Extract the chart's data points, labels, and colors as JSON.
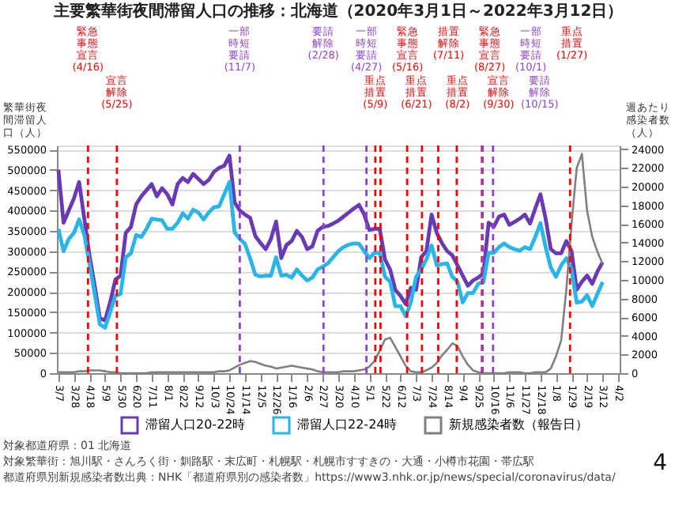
{
  "chart_data": {
    "type": "line",
    "title": "主要繁華街夜間滞留人口の推移：北海道（2020年3月1日～2022年3月12日）",
    "ylabel": "繁華街夜間滞留人口（人）",
    "y2label": "週あたり感染者数（人）",
    "x": [
      "2020-03-07",
      "2020-03-14",
      "2020-03-21",
      "2020-03-28",
      "2020-04-04",
      "2020-04-11",
      "2020-04-18",
      "2020-04-25",
      "2020-05-02",
      "2020-05-09",
      "2020-05-16",
      "2020-05-23",
      "2020-05-30",
      "2020-06-06",
      "2020-06-13",
      "2020-06-20",
      "2020-06-27",
      "2020-07-04",
      "2020-07-11",
      "2020-07-18",
      "2020-07-25",
      "2020-08-01",
      "2020-08-08",
      "2020-08-15",
      "2020-08-22",
      "2020-08-29",
      "2020-09-05",
      "2020-09-12",
      "2020-09-19",
      "2020-09-26",
      "2020-10-03",
      "2020-10-10",
      "2020-10-17",
      "2020-10-24",
      "2020-10-31",
      "2020-11-07",
      "2020-11-14",
      "2020-11-21",
      "2020-11-28",
      "2020-12-05",
      "2020-12-12",
      "2020-12-19",
      "2020-12-26",
      "2021-01-02",
      "2021-01-09",
      "2021-01-16",
      "2021-01-23",
      "2021-01-30",
      "2021-02-06",
      "2021-02-13",
      "2021-02-20",
      "2021-02-27",
      "2021-03-06",
      "2021-03-13",
      "2021-03-20",
      "2021-03-27",
      "2021-04-03",
      "2021-04-10",
      "2021-04-17",
      "2021-04-24",
      "2021-05-01",
      "2021-05-08",
      "2021-05-15",
      "2021-05-22",
      "2021-05-29",
      "2021-06-05",
      "2021-06-12",
      "2021-06-19",
      "2021-06-26",
      "2021-07-03",
      "2021-07-10",
      "2021-07-17",
      "2021-07-24",
      "2021-07-31",
      "2021-08-07",
      "2021-08-14",
      "2021-08-21",
      "2021-08-28",
      "2021-09-04",
      "2021-09-11",
      "2021-09-18",
      "2021-09-25",
      "2021-10-02",
      "2021-10-09",
      "2021-10-16",
      "2021-10-23",
      "2021-10-30",
      "2021-11-06",
      "2021-11-13",
      "2021-11-20",
      "2021-11-27",
      "2021-12-04",
      "2021-12-11",
      "2021-12-18",
      "2021-12-25",
      "2022-01-01",
      "2022-01-08",
      "2022-01-15",
      "2022-01-22",
      "2022-01-29",
      "2022-02-05",
      "2022-02-12",
      "2022-02-19",
      "2022-02-26",
      "2022-03-05",
      "2022-03-12"
    ],
    "series": [
      {
        "name": "滞留人口20-22時",
        "color": "#6a3ab5",
        "values": [
          500000,
          370000,
          400000,
          430000,
          470000,
          380000,
          290000,
          215000,
          135000,
          130000,
          175000,
          230000,
          240000,
          345000,
          360000,
          415000,
          435000,
          450000,
          465000,
          435000,
          455000,
          440000,
          415000,
          465000,
          480000,
          470000,
          490000,
          478000,
          465000,
          475000,
          495000,
          505000,
          510000,
          535000,
          420000,
          400000,
          390000,
          382000,
          337000,
          320000,
          305000,
          330000,
          373000,
          283000,
          315000,
          325000,
          350000,
          335000,
          305000,
          312000,
          350000,
          360000,
          362000,
          368000,
          375000,
          385000,
          395000,
          405000,
          414000,
          390000,
          352000,
          355000,
          355000,
          280000,
          255000,
          205000,
          190000,
          170000,
          210000,
          205000,
          285000,
          300000,
          390000,
          345000,
          320000,
          300000,
          290000,
          265000,
          240000,
          215000,
          228000,
          235000,
          245000,
          370000,
          360000,
          385000,
          390000,
          365000,
          372000,
          380000,
          390000,
          368000,
          405000,
          440000,
          380000,
          305000,
          295000,
          295000,
          325000,
          300000,
          205000,
          225000,
          240000,
          220000,
          250000,
          273000
        ]
      },
      {
        "name": "滞留人口22-24時",
        "color": "#29b5e8",
        "values": [
          355000,
          300000,
          330000,
          345000,
          378000,
          340000,
          270000,
          195000,
          120000,
          112000,
          150000,
          190000,
          195000,
          285000,
          295000,
          340000,
          335000,
          355000,
          380000,
          378000,
          376000,
          355000,
          355000,
          370000,
          393000,
          380000,
          402000,
          395000,
          378000,
          395000,
          408000,
          410000,
          440000,
          470000,
          346000,
          330000,
          318000,
          282000,
          242000,
          238000,
          240000,
          240000,
          285000,
          240000,
          242000,
          235000,
          255000,
          240000,
          228000,
          235000,
          255000,
          262000,
          270000,
          285000,
          300000,
          310000,
          316000,
          319000,
          318000,
          300000,
          283000,
          296000,
          296000,
          237000,
          225000,
          165000,
          165000,
          140000,
          174000,
          237000,
          255000,
          280000,
          314000,
          265000,
          268000,
          270000,
          237000,
          225000,
          174000,
          197000,
          197000,
          220000,
          224000,
          296000,
          296000,
          310000,
          319000,
          310000,
          305000,
          301000,
          310000,
          305000,
          335000,
          369000,
          310000,
          260000,
          237000,
          265000,
          283000,
          255000,
          174000,
          176000,
          192000,
          165000,
          195000,
          224000
        ]
      },
      {
        "name": "新規感染者数（報告日）",
        "color": "#808080",
        "axis": "y2",
        "values": [
          100,
          100,
          100,
          100,
          200,
          200,
          300,
          300,
          300,
          200,
          100,
          100,
          0,
          0,
          0,
          0,
          0,
          0,
          100,
          100,
          100,
          100,
          100,
          100,
          100,
          100,
          100,
          100,
          100,
          100,
          100,
          200,
          200,
          300,
          600,
          900,
          1100,
          1300,
          1200,
          1000,
          800,
          700,
          500,
          600,
          700,
          800,
          700,
          600,
          500,
          400,
          200,
          100,
          100,
          100,
          100,
          200,
          200,
          200,
          300,
          400,
          700,
          1300,
          2400,
          3600,
          3800,
          2800,
          1800,
          800,
          200,
          100,
          100,
          300,
          600,
          1100,
          1900,
          2500,
          3200,
          2900,
          1800,
          900,
          300,
          100,
          0,
          0,
          0,
          0,
          0,
          100,
          100,
          100,
          0,
          0,
          100,
          100,
          100,
          500,
          1800,
          3500,
          9000,
          16000,
          22000,
          23500,
          17400,
          14600,
          13000,
          11700
        ]
      }
    ],
    "xlim": [
      "2020-03-05",
      "2022-04-04"
    ],
    "xticks": [
      {
        "value": "2020-03-07",
        "label": "3/7"
      },
      {
        "value": "2020-03-28",
        "label": "3/28"
      },
      {
        "value": "2020-04-18",
        "label": "4/18"
      },
      {
        "value": "2020-05-09",
        "label": "5/9"
      },
      {
        "value": "2020-05-30",
        "label": "5/30"
      },
      {
        "value": "2020-06-20",
        "label": "6/20"
      },
      {
        "value": "2020-07-11",
        "label": "7/11"
      },
      {
        "value": "2020-08-01",
        "label": "8/1"
      },
      {
        "value": "2020-08-22",
        "label": "8/22"
      },
      {
        "value": "2020-09-12",
        "label": "9/12"
      },
      {
        "value": "2020-10-03",
        "label": "10/3"
      },
      {
        "value": "2020-10-24",
        "label": "10/24"
      },
      {
        "value": "2020-11-14",
        "label": "11/14"
      },
      {
        "value": "2020-12-05",
        "label": "12/5"
      },
      {
        "value": "2020-12-26",
        "label": "12/26"
      },
      {
        "value": "2021-01-16",
        "label": "1/16"
      },
      {
        "value": "2021-02-06",
        "label": "2/6"
      },
      {
        "value": "2021-02-27",
        "label": "2/27"
      },
      {
        "value": "2021-03-20",
        "label": "3/20"
      },
      {
        "value": "2021-04-10",
        "label": "4/10"
      },
      {
        "value": "2021-05-01",
        "label": "5/1"
      },
      {
        "value": "2021-05-22",
        "label": "5/22"
      },
      {
        "value": "2021-06-12",
        "label": "6/12"
      },
      {
        "value": "2021-07-03",
        "label": "7/3"
      },
      {
        "value": "2021-07-24",
        "label": "7/24"
      },
      {
        "value": "2021-08-14",
        "label": "8/14"
      },
      {
        "value": "2021-09-04",
        "label": "9/4"
      },
      {
        "value": "2021-09-25",
        "label": "9/25"
      },
      {
        "value": "2021-10-16",
        "label": "10/16"
      },
      {
        "value": "2021-11-06",
        "label": "11/6"
      },
      {
        "value": "2021-11-27",
        "label": "11/27"
      },
      {
        "value": "2021-12-18",
        "label": "12/18"
      },
      {
        "value": "2022-01-08",
        "label": "1/8"
      },
      {
        "value": "2022-01-29",
        "label": "1/29"
      },
      {
        "value": "2022-02-19",
        "label": "2/19"
      },
      {
        "value": "2022-03-12",
        "label": "3/12"
      },
      {
        "value": "2022-04-02",
        "label": "4/2"
      }
    ],
    "ylim": [
      0,
      560000
    ],
    "yticks": [
      0,
      50000,
      100000,
      150000,
      200000,
      250000,
      300000,
      350000,
      400000,
      450000,
      500000,
      550000
    ],
    "y2lim": [
      0,
      24400
    ],
    "y2ticks": [
      0,
      2000,
      4000,
      6000,
      8000,
      10000,
      12000,
      14000,
      16000,
      18000,
      20000,
      22000,
      24000
    ],
    "ref_lines": [
      {
        "axis": "x",
        "value": "2020-04-16",
        "label": "緊急事態宣言(4/16)",
        "color": "#ff0000",
        "line_style": "dashed"
      },
      {
        "axis": "x",
        "value": "2020-05-25",
        "label": "宣言解除(5/25)",
        "color": "#ff0000",
        "line_style": "dashed"
      },
      {
        "axis": "x",
        "value": "2020-11-07",
        "label": "一部時短要請(11/7)",
        "color": "#8e44d0",
        "line_style": "dashed"
      },
      {
        "axis": "x",
        "value": "2021-02-28",
        "label": "要請解除(2/28)",
        "color": "#8e44d0",
        "line_style": "dashed"
      },
      {
        "axis": "x",
        "value": "2021-04-27",
        "label": "一部時短要請(4/27)",
        "color": "#8e44d0",
        "line_style": "dashed"
      },
      {
        "axis": "x",
        "value": "2021-05-09",
        "label": "重点措置(5/9)",
        "color": "#ff0000",
        "line_style": "dashed"
      },
      {
        "axis": "x",
        "value": "2021-05-16",
        "label": "緊急事態宣言(5/16)",
        "color": "#ff0000",
        "line_style": "dashed"
      },
      {
        "axis": "x",
        "value": "2021-06-21",
        "label": "重点措置(6/21)",
        "color": "#ff0000",
        "line_style": "dashed"
      },
      {
        "axis": "x",
        "value": "2021-07-11",
        "label": "措置解除(7/11)",
        "color": "#ff0000",
        "line_style": "dashed"
      },
      {
        "axis": "x",
        "value": "2021-08-02",
        "label": "重点措置(8/2)",
        "color": "#ff0000",
        "line_style": "dashed"
      },
      {
        "axis": "x",
        "value": "2021-08-27",
        "label": "緊急事態宣言(8/27)",
        "color": "#ff0000",
        "line_style": "dashed"
      },
      {
        "axis": "x",
        "value": "2021-09-30",
        "label": "宣言解除(9/30)",
        "color": "#ff0000",
        "line_style": "dashed"
      },
      {
        "axis": "x",
        "value": "2021-10-01",
        "label": "一部時短要請(10/1)",
        "color": "#8e44d0",
        "line_style": "dashed"
      },
      {
        "axis": "x",
        "value": "2021-10-15",
        "label": "要請解除(10/15)",
        "color": "#8e44d0",
        "line_style": "dashed"
      },
      {
        "axis": "x",
        "value": "2022-01-27",
        "label": "重点措置(1/27)",
        "color": "#ff0000",
        "line_style": "dashed"
      }
    ],
    "annotations": [
      "対象都道府県：01 北海道",
      "対象繁華街：旭川駅・さんろく街・釧路駅・末広町・札幌駅・札幌市すすきの・大通・小樽市花園・帯広駅",
      "都道府県別新規感染者数出典：NHK「都道府県別の感染者数」https://www3.nhk.or.jp/news/special/coronavirus/data/",
      "4"
    ],
    "grid": "y",
    "legend": "bottom",
    "marker": "none",
    "line_style": "solid"
  }
}
